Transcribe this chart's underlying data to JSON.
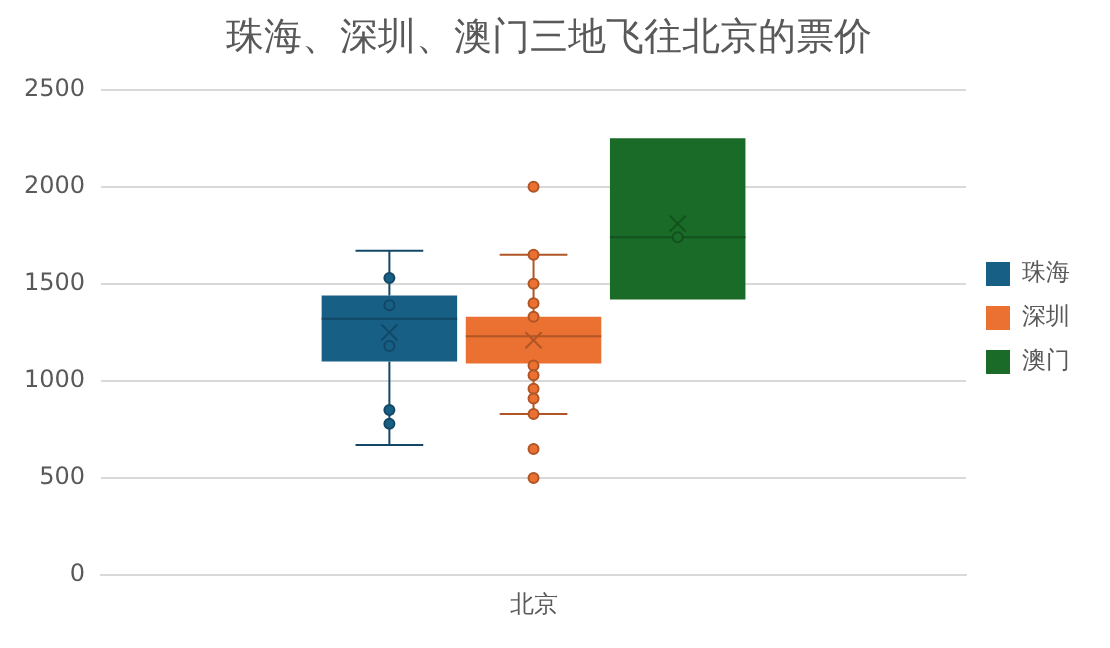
{
  "chart_data": {
    "type": "box",
    "title": "珠海、深圳、澳门三地飞往北京的票价",
    "categories": [
      "北京"
    ],
    "series": [
      {
        "name": "珠海",
        "color": "#185f86",
        "boxes": [
          {
            "low": 670,
            "q1": 1100,
            "median": 1320,
            "q3": 1440,
            "high": 1670,
            "mean": 1250,
            "outliers": [
              1530,
              1390,
              1180,
              850,
              780
            ]
          }
        ]
      },
      {
        "name": "深圳",
        "color": "#ea7131",
        "boxes": [
          {
            "low": 830,
            "q1": 1090,
            "median": 1230,
            "q3": 1330,
            "high": 1650,
            "mean": 1210,
            "outliers": [
              2000,
              1650,
              1500,
              1400,
              1330,
              1080,
              1030,
              960,
              910,
              830,
              650,
              500
            ]
          }
        ]
      },
      {
        "name": "澳门",
        "color": "#1a6b28",
        "boxes": [
          {
            "low": 1420,
            "q1": 1420,
            "median": 1740,
            "q3": 2250,
            "high": 2250,
            "mean": 1810,
            "outliers": [
              1740
            ]
          }
        ]
      }
    ],
    "ylim": [
      0,
      2500
    ],
    "yticks": [
      0,
      500,
      1000,
      1500,
      2000,
      2500
    ],
    "grid": "y",
    "legend": "right"
  }
}
